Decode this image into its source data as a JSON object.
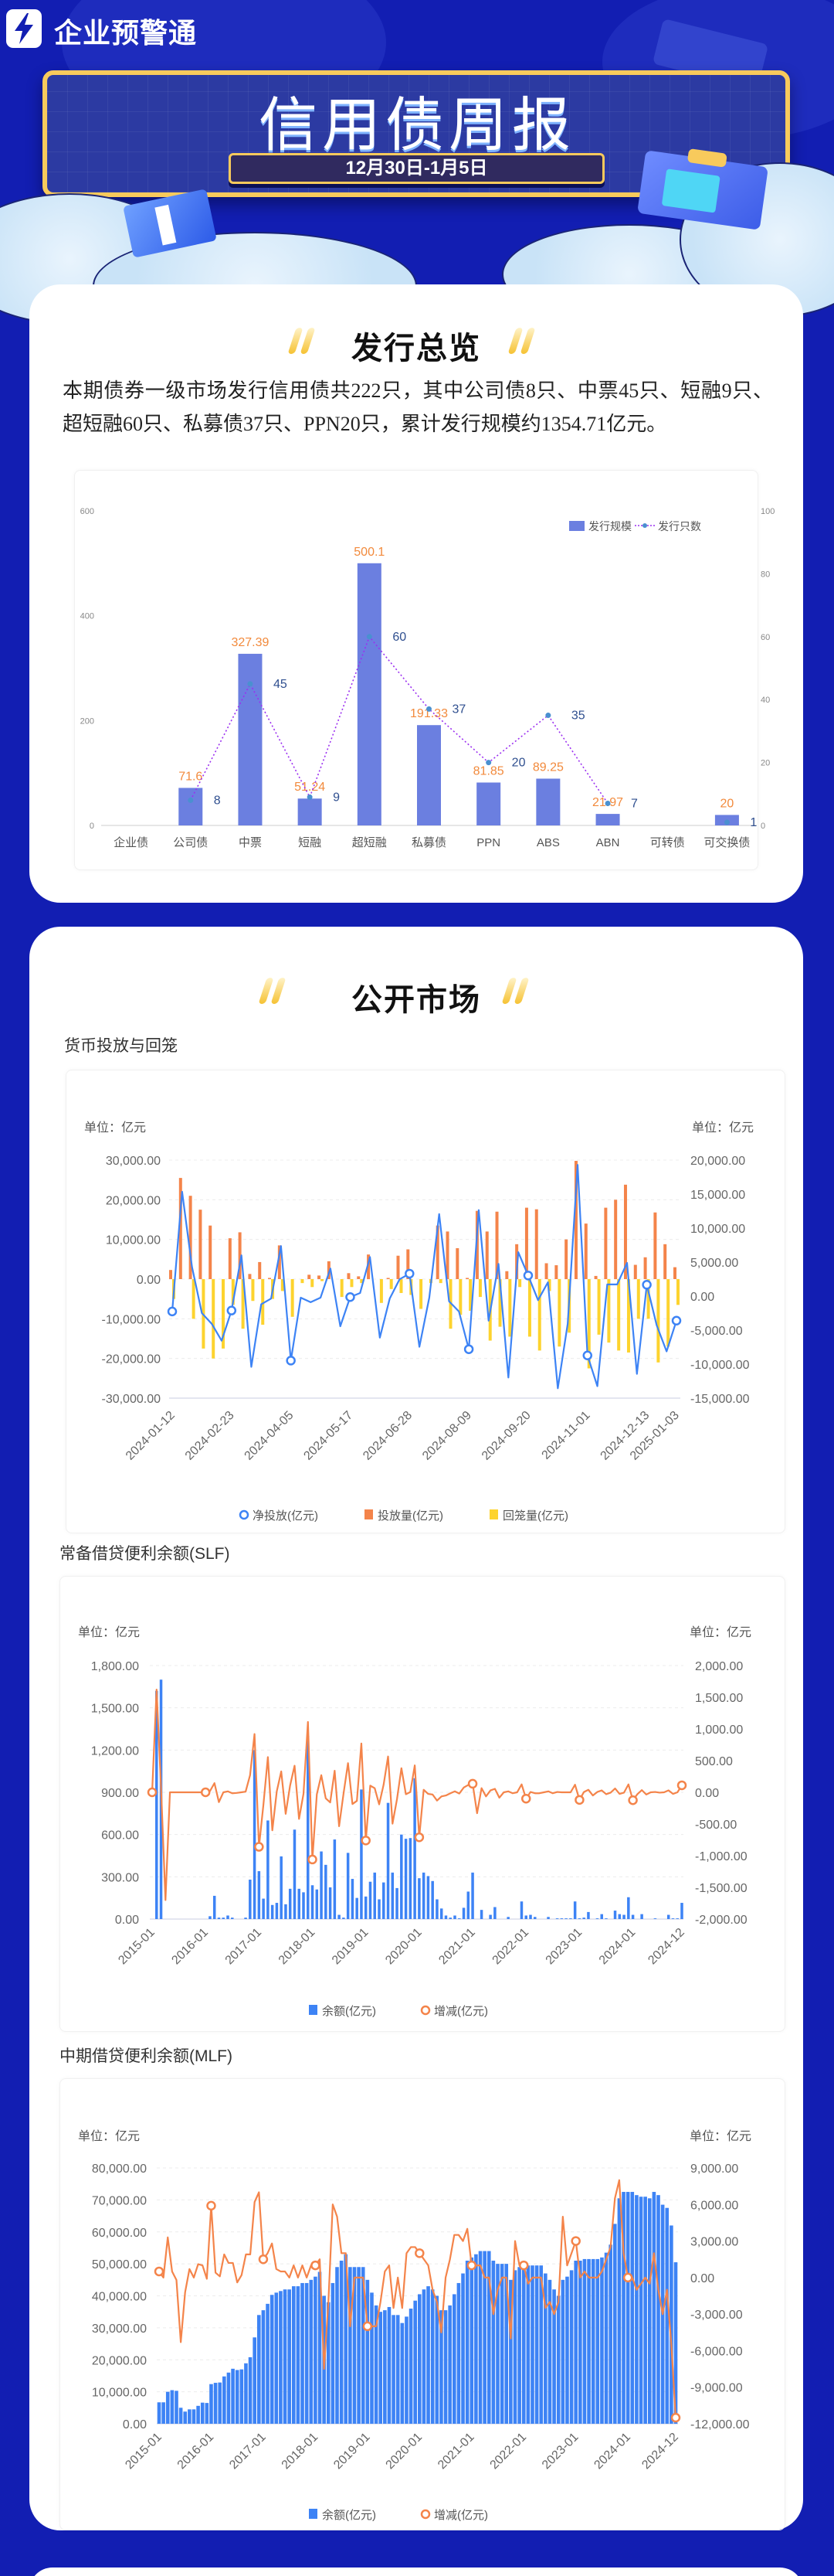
{
  "header": {
    "logo_text": "企业预警通",
    "title": "信用债周报",
    "date": "12月30日-1月5日"
  },
  "overview": {
    "heading": "发行总览",
    "summary": "本期债券一级市场发行信用债共222只，其中公司债8只、中票45只、短融9只、超短融60只、私募债37只、PPN20只，累计发行规模约1354.71亿元。"
  },
  "market": {
    "heading": "公开市场"
  },
  "colors": {
    "page_bg": "#121eb2",
    "gold": "#f8ca5c",
    "bar_blue": "#6b7fe0",
    "orange": "#f4844a",
    "yellow": "#fdd32e",
    "line_blue": "#3d83f5"
  },
  "chart_data": [
    {
      "type": "bar+line",
      "title": "",
      "categories": [
        "企业债",
        "公司债",
        "中票",
        "短融",
        "超短融",
        "私募债",
        "PPN",
        "ABS",
        "ABN",
        "可转债",
        "可交换债"
      ],
      "series": [
        {
          "name": "发行规模",
          "type": "bar",
          "axis": "left",
          "values": [
            null,
            71.6,
            327.39,
            51.24,
            500.1,
            191.33,
            81.85,
            89.25,
            21.97,
            null,
            20
          ]
        },
        {
          "name": "发行只数",
          "type": "line",
          "axis": "right",
          "values": [
            null,
            8,
            45,
            9,
            60,
            37,
            20,
            35,
            7,
            null,
            1
          ]
        }
      ],
      "y_left": {
        "min": 0,
        "max": 600,
        "step": 200
      },
      "y_right": {
        "min": 0,
        "max": 100,
        "step": 20
      },
      "legend": "top-right",
      "grid": false
    },
    {
      "type": "bar+line",
      "title": "货币投放与回笼",
      "unit_left": "单位：亿元",
      "unit_right": "单位：亿元",
      "x_labels": [
        "2024-01-12",
        "2024-02-23",
        "2024-04-05",
        "2024-05-17",
        "2024-06-28",
        "2024-08-09",
        "2024-09-20",
        "2024-11-01",
        "2024-12-13",
        "2025-01-03"
      ],
      "series": [
        {
          "name": "净投放(亿元)",
          "type": "line",
          "axis": "right",
          "values": [
            -2260,
            15350,
            4300,
            -2500,
            -4070,
            -6550,
            -2120,
            6000,
            -10400,
            -1200,
            -360,
            7360,
            -9480,
            -230,
            -900,
            -230,
            4060,
            -4430,
            -140,
            450,
            5740,
            -6100,
            -360,
            2480,
            3300,
            -7450,
            -230,
            12060,
            -770,
            -2260,
            -7810,
            12650,
            -3610,
            4740,
            -11970,
            6460,
            3030,
            -590,
            2030,
            -13550,
            -4070,
            19290,
            -8720,
            -13240,
            1720,
            1720,
            4880,
            -11430,
            1670,
            -4290,
            -8130,
            -3610
          ]
        },
        {
          "name": "投放量(亿元)",
          "type": "bar",
          "axis": "left",
          "values": [
            2300,
            25500,
            21000,
            17500,
            13500,
            0,
            10300,
            11800,
            1300,
            4300,
            300,
            8500,
            0,
            0,
            1100,
            900,
            4500,
            0,
            1500,
            700,
            6200,
            0,
            300,
            5900,
            7500,
            0,
            0,
            13500,
            12000,
            7800,
            300,
            17200,
            12000,
            17000,
            2000,
            8800,
            18000,
            17600,
            4000,
            3500,
            10000,
            29800,
            14000,
            800,
            18000,
            20000,
            23800,
            3600,
            5500,
            16800,
            8800,
            3000
          ]
        },
        {
          "name": "回笼量(亿元)",
          "type": "bar",
          "axis": "left",
          "values": [
            -5000,
            0,
            -10000,
            -17500,
            -20000,
            -17500,
            -6500,
            -12500,
            -5500,
            -11500,
            -5000,
            -3000,
            -9500,
            -1000,
            -2000,
            -500,
            0,
            -4500,
            -2000,
            -1000,
            0,
            -6000,
            -2500,
            -3500,
            -4000,
            -7500,
            -1000,
            -1000,
            -12500,
            -9000,
            -8000,
            -4500,
            -15500,
            -12000,
            -14500,
            -2000,
            -14500,
            -18000,
            -3000,
            -17000,
            -13500,
            0,
            -22500,
            -14000,
            -16000,
            -18000,
            -18500,
            -10000,
            -10000,
            -21000,
            -17000,
            -6500
          ]
        }
      ],
      "y_left": {
        "min": -30000,
        "max": 30000,
        "step": 10000
      },
      "y_right": {
        "min": -15000,
        "max": 20000,
        "step": 5000
      },
      "legend": "bottom",
      "grid": true
    },
    {
      "type": "bar+line",
      "title": "常备借贷便利余额(SLF)",
      "unit_left": "单位：亿元",
      "unit_right": "单位：亿元",
      "x_labels": [
        "2015-01",
        "2016-01",
        "2017-01",
        "2018-01",
        "2019-01",
        "2020-01",
        "2021-01",
        "2022-01",
        "2023-01",
        "2024-01",
        "2024-12"
      ],
      "series": [
        {
          "name": "余额(亿元)",
          "type": "bar",
          "axis": "left",
          "values": [
            0,
            1620,
            1700,
            0,
            0,
            0,
            0,
            0,
            0,
            0,
            0,
            0,
            0,
            20,
            165,
            10,
            10,
            25,
            10,
            0,
            0,
            10,
            280,
            1200,
            340,
            145,
            700,
            100,
            115,
            445,
            105,
            215,
            635,
            215,
            190,
            1300,
            240,
            210,
            480,
            385,
            225,
            565,
            30,
            10,
            470,
            285,
            150,
            920,
            160,
            265,
            330,
            140,
            260,
            825,
            330,
            220,
            600,
            570,
            575,
            1000,
            290,
            330,
            305,
            270,
            140,
            75,
            25,
            10,
            25,
            5,
            80,
            195,
            330,
            0,
            65,
            0,
            30,
            85,
            0,
            0,
            15,
            0,
            0,
            125,
            25,
            30,
            15,
            0,
            0,
            15,
            0,
            5,
            5,
            5,
            5,
            125,
            5,
            10,
            50,
            0,
            5,
            35,
            5,
            0,
            60,
            35,
            30,
            155,
            30,
            0,
            35,
            0,
            0,
            5,
            0,
            0,
            30,
            5,
            5,
            115
          ]
        },
        {
          "name": "增减(亿元)",
          "type": "line",
          "axis": "right",
          "values": [
            0,
            1620,
            80,
            -1700,
            0,
            0,
            0,
            0,
            0,
            0,
            0,
            0,
            0,
            20,
            145,
            -155,
            0,
            15,
            -15,
            -10,
            0,
            10,
            270,
            920,
            -860,
            -195,
            555,
            -600,
            15,
            330,
            -340,
            110,
            420,
            -420,
            -25,
            1110,
            -1060,
            -30,
            270,
            -95,
            -160,
            340,
            -535,
            -20,
            460,
            -185,
            -135,
            770,
            -760,
            105,
            65,
            -190,
            120,
            565,
            -495,
            -110,
            380,
            -30,
            5,
            425,
            -710,
            40,
            -25,
            -35,
            -130,
            -65,
            -50,
            -15,
            15,
            -20,
            75,
            115,
            135,
            -330,
            65,
            -65,
            30,
            55,
            -85,
            0,
            15,
            -15,
            0,
            125,
            -100,
            5,
            -15,
            -15,
            0,
            15,
            -15,
            5,
            0,
            0,
            0,
            120,
            -120,
            5,
            40,
            -50,
            5,
            30,
            -30,
            -5,
            60,
            -25,
            -5,
            125,
            -125,
            -30,
            35,
            -35,
            0,
            5,
            -5,
            0,
            30,
            -25,
            0,
            110
          ]
        }
      ],
      "y_left": {
        "min": 0,
        "max": 1800,
        "step": 300
      },
      "y_right": {
        "min": -2000,
        "max": 2000,
        "step": 500
      },
      "legend": "bottom",
      "grid": true
    },
    {
      "type": "bar+line",
      "title": "中期借贷便利余额(MLF)",
      "unit_left": "单位：亿元",
      "unit_right": "单位：亿元",
      "x_labels": [
        "2015-01",
        "2016-01",
        "2017-01",
        "2018-01",
        "2019-01",
        "2020-01",
        "2021-01",
        "2022-01",
        "2023-01",
        "2024-01",
        "2024-12"
      ],
      "series": [
        {
          "name": "余额(亿元)",
          "type": "bar",
          "axis": "left",
          "values": [
            6700,
            6700,
            10000,
            10500,
            10300,
            5000,
            3800,
            4500,
            4500,
            5600,
            6600,
            6500,
            12400,
            12800,
            12900,
            14800,
            16000,
            17200,
            16800,
            17000,
            18900,
            20800,
            27000,
            34000,
            35500,
            37500,
            40300,
            41000,
            41500,
            42000,
            42000,
            43000,
            43000,
            44000,
            44000,
            45000,
            46000,
            47500,
            40000,
            38000,
            44000,
            49000,
            51000,
            53000,
            49000,
            49000,
            49000,
            49000,
            45000,
            41000,
            37000,
            35000,
            35500,
            36500,
            34000,
            34000,
            31500,
            33500,
            36000,
            38500,
            40500,
            42000,
            43000,
            42000,
            40000,
            35500,
            35500,
            37000,
            40500,
            44000,
            47000,
            51000,
            52000,
            53000,
            54000,
            54000,
            54000,
            51000,
            50000,
            50000,
            50000,
            45000,
            48000,
            49000,
            50000,
            49500,
            49500,
            49500,
            49500,
            47000,
            45000,
            42000,
            40000,
            45000,
            46000,
            48000,
            51000,
            51000,
            51500,
            51500,
            51500,
            51500,
            52000,
            53500,
            56000,
            62500,
            70500,
            72500,
            72500,
            72500,
            71500,
            71000,
            71000,
            70500,
            72500,
            71500,
            68500,
            67500,
            62000,
            50500
          ]
        },
        {
          "name": "增减(亿元)",
          "type": "line",
          "axis": "right",
          "values": [
            500,
            0,
            3300,
            500,
            -200,
            -5300,
            -1200,
            700,
            0,
            1100,
            1000,
            -100,
            5900,
            400,
            100,
            1900,
            1200,
            1200,
            -400,
            200,
            1900,
            1900,
            6200,
            7000,
            1500,
            2000,
            2800,
            700,
            500,
            500,
            0,
            1000,
            0,
            1000,
            0,
            1000,
            1000,
            1500,
            -7500,
            -2000,
            6000,
            5000,
            2000,
            2000,
            -4000,
            0,
            0,
            0,
            -4000,
            -4000,
            -4000,
            -2000,
            500,
            1000,
            -2500,
            0,
            -2500,
            2000,
            2500,
            2500,
            2000,
            1500,
            1000,
            -1000,
            -2000,
            -4500,
            0,
            1500,
            3500,
            3500,
            3000,
            4000,
            1000,
            1000,
            1000,
            0,
            0,
            -3000,
            -1000,
            0,
            0,
            -5000,
            3000,
            1000,
            1000,
            -500,
            0,
            0,
            0,
            -2500,
            -2000,
            -3000,
            -2000,
            5000,
            1000,
            2000,
            3000,
            0,
            500,
            0,
            0,
            0,
            500,
            1500,
            2500,
            6500,
            8000,
            2000,
            0,
            0,
            -1000,
            -500,
            0,
            -500,
            2000,
            -1000,
            -3000,
            -1000,
            -5500,
            -11500
          ]
        }
      ],
      "y_left": {
        "min": 0,
        "max": 80000,
        "step": 10000
      },
      "y_right": {
        "min": -12000,
        "max": 9000,
        "step": 3000
      },
      "legend": "bottom",
      "grid": true
    }
  ]
}
